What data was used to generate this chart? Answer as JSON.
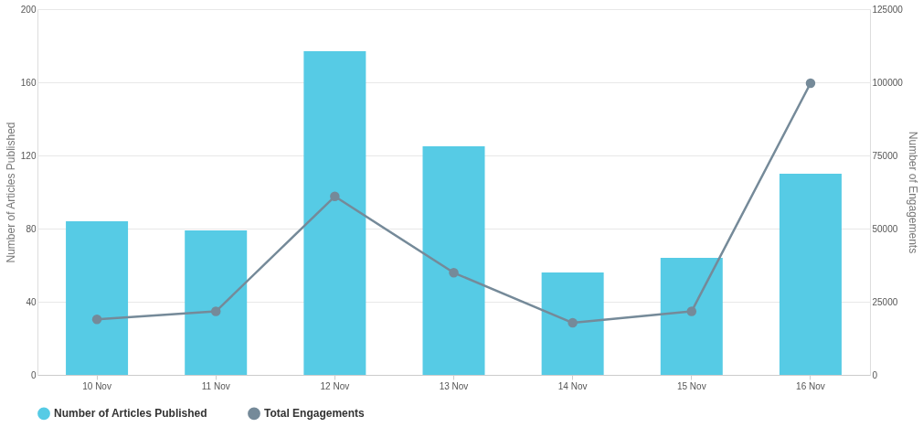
{
  "chart_data": {
    "type": "bar",
    "categories": [
      "10 Nov",
      "11 Nov",
      "12 Nov",
      "13 Nov",
      "14 Nov",
      "15 Nov",
      "16 Nov"
    ],
    "ylabel": "Number of Articles Published",
    "y2label": "Number of Engagements",
    "series": [
      {
        "name": "Number of Articles Published",
        "color": "#56cbe5",
        "values": [
          84,
          79,
          177,
          125,
          56,
          64,
          110
        ]
      },
      {
        "name": "Total Engagements",
        "type": "line",
        "axis": "y2",
        "color": "#758a99",
        "values": [
          19000,
          21700,
          61000,
          34900,
          17800,
          21700,
          99700
        ]
      }
    ],
    "ylim": [
      0,
      200
    ],
    "yticks": [
      0,
      40,
      80,
      120,
      160,
      200
    ],
    "y2lim": [
      0,
      125000
    ],
    "y2ticks": [
      0,
      25000,
      50000,
      75000,
      100000,
      125000
    ],
    "grid": "y",
    "legend": "bottom",
    "marker": "circle",
    "line_style": "solid"
  }
}
